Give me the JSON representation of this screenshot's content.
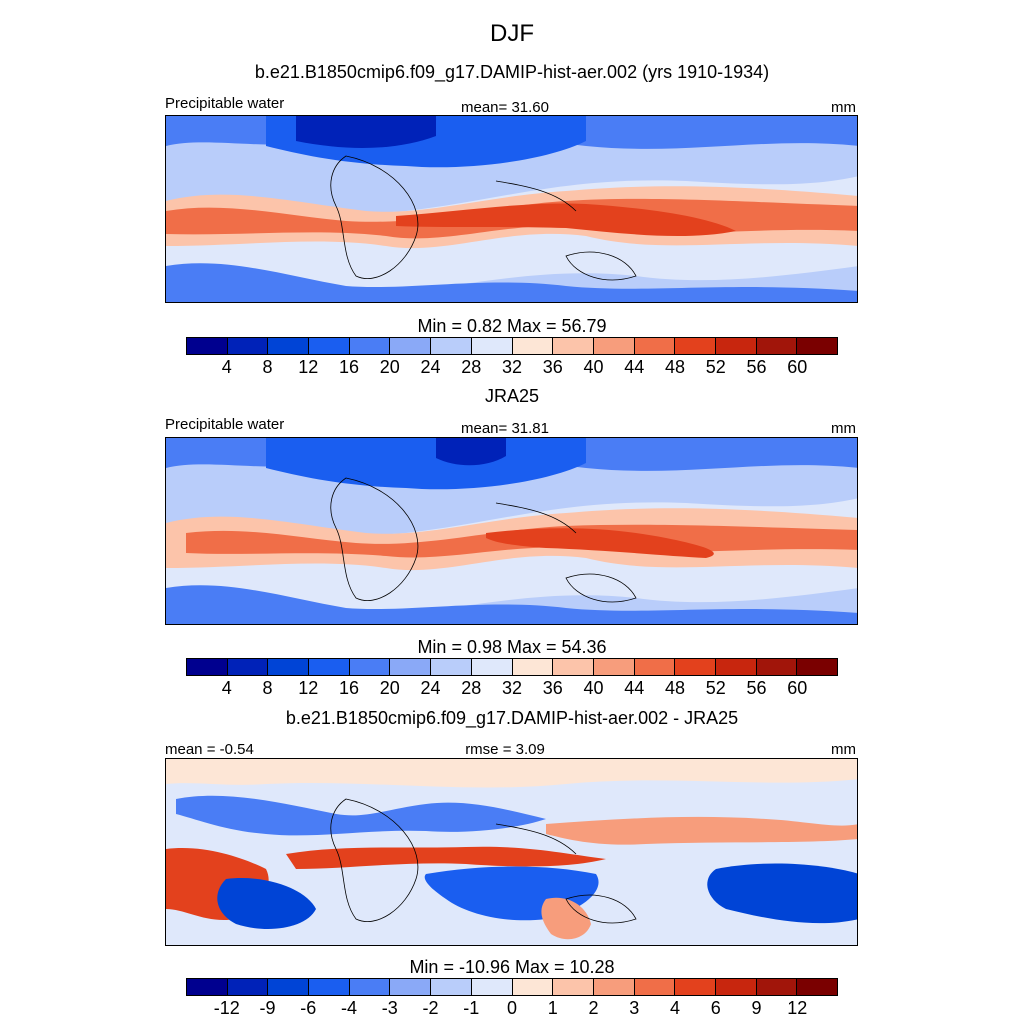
{
  "title": "DJF",
  "units": "mm",
  "colors": [
    "#00008f",
    "#0022b8",
    "#0044d6",
    "#1a5ef0",
    "#4a7df5",
    "#8aa9f7",
    "#b9cdfa",
    "#dfe8fb",
    "#fde6d6",
    "#fcc4aa",
    "#f79d7c",
    "#f06e48",
    "#e3411d",
    "#c8260e",
    "#a1150a",
    "#7a0000"
  ],
  "panels": [
    {
      "title": "b.e21.B1850cmip6.f09_g17.DAMIP-hist-aer.002 (yrs 1910-1934)",
      "left_label": "Precipitable water",
      "center_label": "mean=  31.60",
      "right_label": "mm",
      "stats": "Min =   0.82 Max =  56.79"
    },
    {
      "title": "JRA25",
      "left_label": "Precipitable water",
      "center_label": "mean=  31.81",
      "right_label": "mm",
      "stats": "Min =   0.98 Max =  54.36"
    },
    {
      "title": "b.e21.B1850cmip6.f09_g17.DAMIP-hist-aer.002 - JRA25",
      "left_label": "mean =  -0.54",
      "center_label": "rmse =   3.09",
      "right_label": "mm",
      "stats": "Min = -10.96 Max =  10.28"
    }
  ],
  "chart_data": [
    {
      "type": "heatmap",
      "title": "b.e21.B1850cmip6.f09_g17.DAMIP-hist-aer.002 (yrs 1910-1934)",
      "variable": "Precipitable water",
      "units": "mm",
      "mean": 31.6,
      "min": 0.82,
      "max": 56.79,
      "colorbar_ticks": [
        "4",
        "8",
        "12",
        "16",
        "20",
        "24",
        "28",
        "32",
        "36",
        "40",
        "44",
        "48",
        "52",
        "56",
        "60"
      ]
    },
    {
      "type": "heatmap",
      "title": "JRA25",
      "variable": "Precipitable water",
      "units": "mm",
      "mean": 31.81,
      "min": 0.98,
      "max": 54.36,
      "colorbar_ticks": [
        "4",
        "8",
        "12",
        "16",
        "20",
        "24",
        "28",
        "32",
        "36",
        "40",
        "44",
        "48",
        "52",
        "56",
        "60"
      ]
    },
    {
      "type": "heatmap",
      "title": "b.e21.B1850cmip6.f09_g17.DAMIP-hist-aer.002 - JRA25",
      "units": "mm",
      "mean": -0.54,
      "rmse": 3.09,
      "min": -10.96,
      "max": 10.28,
      "colorbar_ticks": [
        "-12",
        "-9",
        "-6",
        "-4",
        "-3",
        "-2",
        "-1",
        "0",
        "1",
        "2",
        "3",
        "4",
        "6",
        "9",
        "12"
      ]
    }
  ]
}
